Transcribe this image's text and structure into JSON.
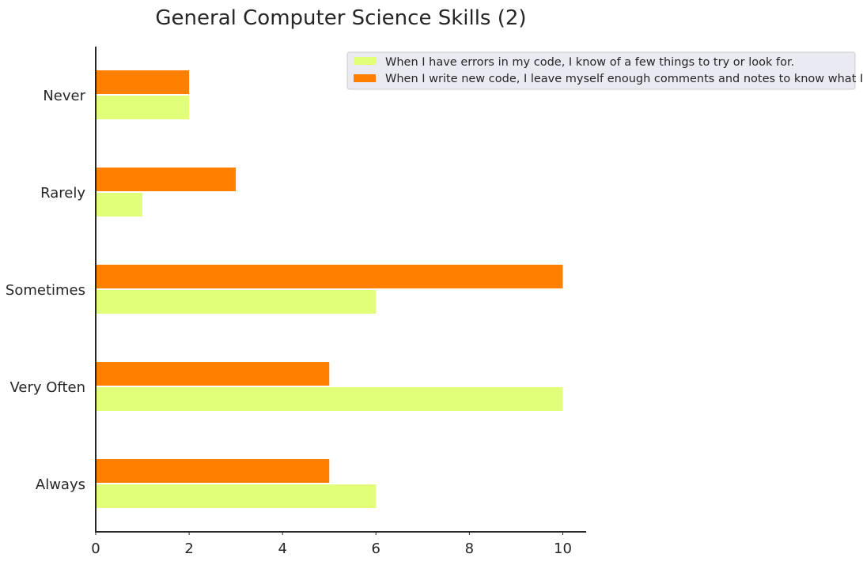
{
  "chart_data": {
    "type": "bar",
    "orientation": "horizontal",
    "title": "General Computer Science Skills (2)",
    "xlabel": "",
    "ylabel": "",
    "categories": [
      "Always",
      "Very Often",
      "Sometimes",
      "Rarely",
      "Never"
    ],
    "xlim": [
      0,
      10.5
    ],
    "xticks": [
      0,
      2,
      4,
      6,
      8,
      10
    ],
    "grid": false,
    "legend_position": "top-right",
    "series": [
      {
        "name": "When I have errors in my code, I know of a few things to try or look for.",
        "color": "#e2ff7a",
        "values": [
          6,
          10,
          6,
          1,
          2
        ]
      },
      {
        "name": "When I write new code, I leave myself enough comments and notes to know what I did.",
        "color": "#ff7f00",
        "values": [
          5,
          5,
          10,
          3,
          2
        ]
      }
    ]
  }
}
